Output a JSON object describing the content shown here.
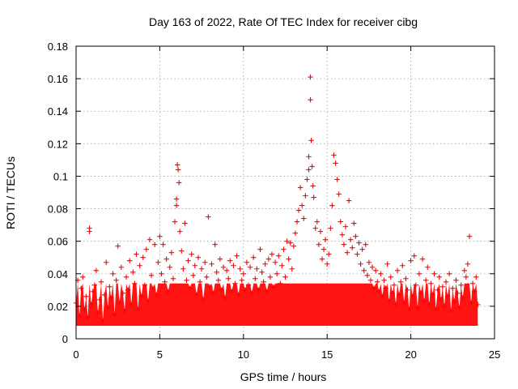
{
  "chart_data": {
    "type": "scatter",
    "title": "Day 163 of 2022, Rate Of TEC Index for receiver cibg",
    "xlabel": "GPS time / hours",
    "ylabel": "ROTI / TECUs",
    "xlim": [
      0,
      25
    ],
    "ylim": [
      0,
      0.18
    ],
    "xticks": [
      0,
      5,
      10,
      15,
      20,
      25
    ],
    "yticks": [
      0,
      0.02,
      0.04,
      0.06,
      0.08,
      0.1,
      0.12,
      0.14,
      0.16,
      0.18
    ],
    "xtick_labels": [
      "0",
      "5",
      "10",
      "15",
      "20",
      "25"
    ],
    "ytick_labels": [
      "0",
      "0.02",
      "0.04",
      "0.06",
      "0.08",
      "0.1",
      "0.12",
      "0.14",
      "0.16",
      "0.18"
    ],
    "grid": true,
    "marker": "+",
    "color": "#ff0000",
    "series": [
      {
        "name": "ROTI",
        "points": [
          [
            0.0,
            0.022
          ],
          [
            0.1,
            0.036
          ],
          [
            0.2,
            0.014
          ],
          [
            0.3,
            0.031
          ],
          [
            0.4,
            0.038
          ],
          [
            0.5,
            0.018
          ],
          [
            0.6,
            0.026
          ],
          [
            0.7,
            0.013
          ],
          [
            0.8,
            0.066
          ],
          [
            0.8,
            0.068
          ],
          [
            0.9,
            0.021
          ],
          [
            1.0,
            0.029
          ],
          [
            1.1,
            0.033
          ],
          [
            1.2,
            0.042
          ],
          [
            1.3,
            0.016
          ],
          [
            1.4,
            0.024
          ],
          [
            1.5,
            0.035
          ],
          [
            1.6,
            0.011
          ],
          [
            1.7,
            0.027
          ],
          [
            1.8,
            0.047
          ],
          [
            1.9,
            0.019
          ],
          [
            2.0,
            0.032
          ],
          [
            2.1,
            0.025
          ],
          [
            2.2,
            0.04
          ],
          [
            2.3,
            0.015
          ],
          [
            2.4,
            0.036
          ],
          [
            2.5,
            0.057
          ],
          [
            2.6,
            0.022
          ],
          [
            2.7,
            0.044
          ],
          [
            2.8,
            0.028
          ],
          [
            2.9,
            0.017
          ],
          [
            3.0,
            0.038
          ],
          [
            3.1,
            0.03
          ],
          [
            3.2,
            0.048
          ],
          [
            3.3,
            0.021
          ],
          [
            3.4,
            0.041
          ],
          [
            3.5,
            0.034
          ],
          [
            3.6,
            0.052
          ],
          [
            3.7,
            0.018
          ],
          [
            3.8,
            0.045
          ],
          [
            3.9,
            0.026
          ],
          [
            4.0,
            0.05
          ],
          [
            4.1,
            0.033
          ],
          [
            4.2,
            0.055
          ],
          [
            4.3,
            0.023
          ],
          [
            4.4,
            0.061
          ],
          [
            4.5,
            0.039
          ],
          [
            4.6,
            0.031
          ],
          [
            4.7,
            0.058
          ],
          [
            4.8,
            0.027
          ],
          [
            4.9,
            0.047
          ],
          [
            5.0,
            0.063
          ],
          [
            5.1,
            0.04
          ],
          [
            5.2,
            0.058
          ],
          [
            5.3,
            0.035
          ],
          [
            5.4,
            0.049
          ],
          [
            5.5,
            0.029
          ],
          [
            5.6,
            0.044
          ],
          [
            5.7,
            0.053
          ],
          [
            5.8,
            0.037
          ],
          [
            5.9,
            0.072
          ],
          [
            6.0,
            0.082
          ],
          [
            6.0,
            0.086
          ],
          [
            6.05,
            0.107
          ],
          [
            6.1,
            0.104
          ],
          [
            6.15,
            0.096
          ],
          [
            6.2,
            0.066
          ],
          [
            6.3,
            0.054
          ],
          [
            6.4,
            0.043
          ],
          [
            6.5,
            0.071
          ],
          [
            6.6,
            0.036
          ],
          [
            6.7,
            0.048
          ],
          [
            6.8,
            0.031
          ],
          [
            6.9,
            0.052
          ],
          [
            7.0,
            0.039
          ],
          [
            7.1,
            0.045
          ],
          [
            7.2,
            0.027
          ],
          [
            7.3,
            0.05
          ],
          [
            7.4,
            0.035
          ],
          [
            7.5,
            0.043
          ],
          [
            7.6,
            0.024
          ],
          [
            7.7,
            0.047
          ],
          [
            7.8,
            0.038
          ],
          [
            7.9,
            0.075
          ],
          [
            8.0,
            0.032
          ],
          [
            8.1,
            0.046
          ],
          [
            8.2,
            0.028
          ],
          [
            8.3,
            0.058
          ],
          [
            8.4,
            0.041
          ],
          [
            8.5,
            0.036
          ],
          [
            8.6,
            0.049
          ],
          [
            8.7,
            0.03
          ],
          [
            8.8,
            0.044
          ],
          [
            8.9,
            0.025
          ],
          [
            9.0,
            0.042
          ],
          [
            9.1,
            0.037
          ],
          [
            9.2,
            0.048
          ],
          [
            9.3,
            0.029
          ],
          [
            9.4,
            0.045
          ],
          [
            9.5,
            0.034
          ],
          [
            9.6,
            0.051
          ],
          [
            9.7,
            0.027
          ],
          [
            9.8,
            0.043
          ],
          [
            9.9,
            0.036
          ],
          [
            10.0,
            0.04
          ],
          [
            10.1,
            0.03
          ],
          [
            10.2,
            0.047
          ],
          [
            10.3,
            0.033
          ],
          [
            10.4,
            0.044
          ],
          [
            10.5,
            0.028
          ],
          [
            10.6,
            0.05
          ],
          [
            10.7,
            0.037
          ],
          [
            10.8,
            0.043
          ],
          [
            10.9,
            0.03
          ],
          [
            11.0,
            0.055
          ],
          [
            11.1,
            0.041
          ],
          [
            11.2,
            0.035
          ],
          [
            11.3,
            0.046
          ],
          [
            11.4,
            0.029
          ],
          [
            11.5,
            0.049
          ],
          [
            11.6,
            0.038
          ],
          [
            11.7,
            0.052
          ],
          [
            11.8,
            0.032
          ],
          [
            11.9,
            0.047
          ],
          [
            12.0,
            0.04
          ],
          [
            12.1,
            0.051
          ],
          [
            12.2,
            0.034
          ],
          [
            12.3,
            0.045
          ],
          [
            12.4,
            0.055
          ],
          [
            12.5,
            0.038
          ],
          [
            12.6,
            0.06
          ],
          [
            12.7,
            0.049
          ],
          [
            12.8,
            0.059
          ],
          [
            12.9,
            0.043
          ],
          [
            13.0,
            0.057
          ],
          [
            13.1,
            0.065
          ],
          [
            13.2,
            0.072
          ],
          [
            13.3,
            0.079
          ],
          [
            13.4,
            0.093
          ],
          [
            13.5,
            0.082
          ],
          [
            13.6,
            0.074
          ],
          [
            13.7,
            0.088
          ],
          [
            13.8,
            0.098
          ],
          [
            13.9,
            0.104
          ],
          [
            13.9,
            0.112
          ],
          [
            14.0,
            0.161
          ],
          [
            14.0,
            0.147
          ],
          [
            14.05,
            0.122
          ],
          [
            14.1,
            0.106
          ],
          [
            14.15,
            0.094
          ],
          [
            14.2,
            0.087
          ],
          [
            14.3,
            0.068
          ],
          [
            14.4,
            0.072
          ],
          [
            14.5,
            0.058
          ],
          [
            14.6,
            0.066
          ],
          [
            14.7,
            0.049
          ],
          [
            14.8,
            0.055
          ],
          [
            14.9,
            0.061
          ],
          [
            15.0,
            0.046
          ],
          [
            15.1,
            0.052
          ],
          [
            15.2,
            0.068
          ],
          [
            15.3,
            0.082
          ],
          [
            15.4,
            0.113
          ],
          [
            15.5,
            0.108
          ],
          [
            15.6,
            0.098
          ],
          [
            15.7,
            0.089
          ],
          [
            15.8,
            0.072
          ],
          [
            15.9,
            0.064
          ],
          [
            16.0,
            0.058
          ],
          [
            16.1,
            0.069
          ],
          [
            16.2,
            0.053
          ],
          [
            16.3,
            0.085
          ],
          [
            16.4,
            0.061
          ],
          [
            16.5,
            0.056
          ],
          [
            16.6,
            0.071
          ],
          [
            16.7,
            0.063
          ],
          [
            16.8,
            0.052
          ],
          [
            16.9,
            0.059
          ],
          [
            17.0,
            0.046
          ],
          [
            17.1,
            0.055
          ],
          [
            17.2,
            0.042
          ],
          [
            17.3,
            0.058
          ],
          [
            17.4,
            0.039
          ],
          [
            17.5,
            0.047
          ],
          [
            17.6,
            0.036
          ],
          [
            17.7,
            0.044
          ],
          [
            17.8,
            0.031
          ],
          [
            17.9,
            0.042
          ],
          [
            18.0,
            0.035
          ],
          [
            18.1,
            0.029
          ],
          [
            18.2,
            0.04
          ],
          [
            18.3,
            0.026
          ],
          [
            18.4,
            0.036
          ],
          [
            18.5,
            0.031
          ],
          [
            18.6,
            0.046
          ],
          [
            18.7,
            0.023
          ],
          [
            18.8,
            0.038
          ],
          [
            18.9,
            0.028
          ],
          [
            19.0,
            0.033
          ],
          [
            19.1,
            0.021
          ],
          [
            19.2,
            0.042
          ],
          [
            19.3,
            0.027
          ],
          [
            19.4,
            0.035
          ],
          [
            19.5,
            0.045
          ],
          [
            19.6,
            0.022
          ],
          [
            19.7,
            0.037
          ],
          [
            19.8,
            0.03
          ],
          [
            19.9,
            0.018
          ],
          [
            20.0,
            0.048
          ],
          [
            20.1,
            0.026
          ],
          [
            20.2,
            0.051
          ],
          [
            20.3,
            0.033
          ],
          [
            20.4,
            0.019
          ],
          [
            20.5,
            0.04
          ],
          [
            20.6,
            0.028
          ],
          [
            20.7,
            0.049
          ],
          [
            20.8,
            0.023
          ],
          [
            20.9,
            0.036
          ],
          [
            21.0,
            0.044
          ],
          [
            21.1,
            0.021
          ],
          [
            21.2,
            0.034
          ],
          [
            21.3,
            0.027
          ],
          [
            21.4,
            0.04
          ],
          [
            21.5,
            0.018
          ],
          [
            21.6,
            0.03
          ],
          [
            21.7,
            0.038
          ],
          [
            21.8,
            0.024
          ],
          [
            21.9,
            0.032
          ],
          [
            22.0,
            0.02
          ],
          [
            22.1,
            0.035
          ],
          [
            22.2,
            0.026
          ],
          [
            22.3,
            0.04
          ],
          [
            22.4,
            0.017
          ],
          [
            22.5,
            0.031
          ],
          [
            22.6,
            0.023
          ],
          [
            22.7,
            0.036
          ],
          [
            22.8,
            0.028
          ],
          [
            22.9,
            0.019
          ],
          [
            23.0,
            0.033
          ],
          [
            23.1,
            0.025
          ],
          [
            23.2,
            0.042
          ],
          [
            23.3,
            0.038
          ],
          [
            23.4,
            0.046
          ],
          [
            23.5,
            0.063
          ],
          [
            23.6,
            0.022
          ],
          [
            23.7,
            0.034
          ],
          [
            23.8,
            0.029
          ],
          [
            23.9,
            0.038
          ],
          [
            24.0,
            0.021
          ]
        ]
      }
    ]
  }
}
